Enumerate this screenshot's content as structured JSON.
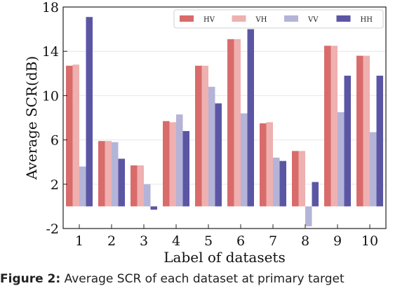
{
  "chart_data": {
    "type": "bar",
    "title": "",
    "xlabel": "Label of datasets",
    "ylabel": "Average SCR(dB)",
    "categories": [
      "1",
      "2",
      "3",
      "4",
      "5",
      "6",
      "7",
      "8",
      "9",
      "10"
    ],
    "ylim": [
      -2,
      18
    ],
    "yticks": [
      "-2",
      "2",
      "6",
      "10",
      "14",
      "18"
    ],
    "legend_position": "top-right",
    "grid": "horizontal",
    "series": [
      {
        "name": "HV",
        "color": "#d96b6b",
        "values": [
          12.7,
          5.9,
          3.7,
          7.7,
          12.7,
          15.1,
          7.5,
          5.0,
          14.5,
          13.6
        ]
      },
      {
        "name": "VH",
        "color": "#efb0b0",
        "values": [
          12.8,
          5.9,
          3.7,
          7.6,
          12.7,
          15.1,
          7.6,
          5.0,
          14.5,
          13.6
        ]
      },
      {
        "name": "VV",
        "color": "#b4b4d8",
        "values": [
          3.6,
          5.8,
          2.0,
          8.3,
          10.8,
          8.4,
          4.4,
          -1.8,
          8.5,
          6.7
        ]
      },
      {
        "name": "HH",
        "color": "#5b56a4",
        "values": [
          17.1,
          4.3,
          -0.3,
          6.8,
          9.3,
          16.0,
          4.1,
          2.2,
          11.8,
          11.8
        ]
      }
    ]
  },
  "caption": {
    "label": "Figure 2:",
    "text": " Average SCR of each dataset at primary target"
  }
}
